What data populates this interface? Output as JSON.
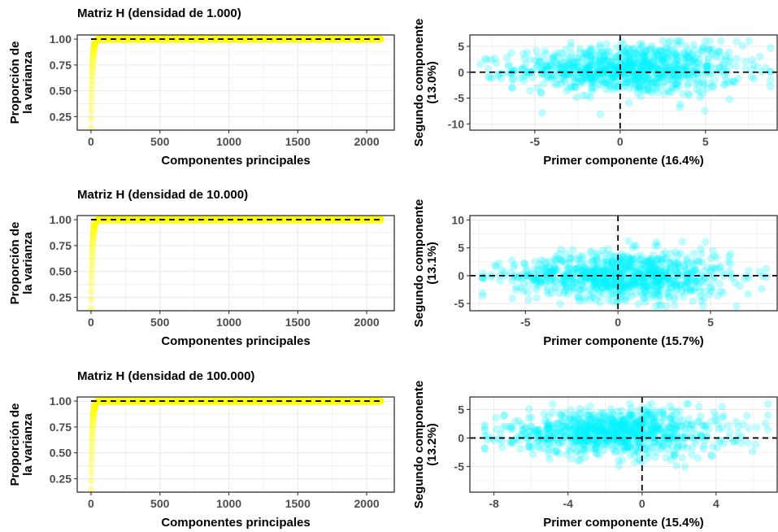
{
  "colors": {
    "variance_fill": "#ffff00",
    "pca_fill": "#00f5ff",
    "reference_line": "#000000",
    "grid": "#ebebeb",
    "panel_border": "#333333",
    "tick_text": "#4d4d4d"
  },
  "chart_data": [
    {
      "type": "scatter",
      "title": "Matriz H (densidad de 1.000)",
      "xlabel": "Componentes principales",
      "ylabel_lines": [
        "Proporción de",
        "la varianza"
      ],
      "xlim": [
        -100,
        2200
      ],
      "ylim": [
        0.12,
        1.04
      ],
      "x_ticks": [
        0,
        500,
        1000,
        1500,
        2000
      ],
      "x_tick_labels": [
        "0",
        "500",
        "1000",
        "1500",
        "2000"
      ],
      "y_ticks": [
        0.25,
        0.5,
        0.75,
        1.0
      ],
      "y_tick_labels": [
        "0.25",
        "0.50",
        "0.75",
        "1.00"
      ],
      "reference_line_y": 1.0,
      "n_components": 2100,
      "first_component_proportion": 0.14,
      "grid": true
    },
    {
      "type": "scatter",
      "xlabel": "Primer componente (16.4%)",
      "ylabel_lines": [
        "Segundo componente",
        "(13.0%)"
      ],
      "xlim": [
        -8.8,
        9.2
      ],
      "ylim": [
        -11.2,
        7.2
      ],
      "x_ticks": [
        -5,
        0,
        5
      ],
      "x_tick_labels": [
        "-5",
        "0",
        "5"
      ],
      "y_ticks": [
        -10,
        -5,
        0,
        5
      ],
      "y_tick_labels": [
        "-10",
        "-5",
        "0",
        "5"
      ],
      "reference_lines": {
        "x": 0,
        "y": 0
      },
      "cloud": {
        "x_range": [
          -8.2,
          8.8
        ],
        "y_range": [
          -10.5,
          6.0
        ],
        "x_center": 0.5,
        "y_center": 0.6,
        "n_points": 900
      },
      "grid": true
    },
    {
      "type": "scatter",
      "title": "Matriz H (densidad de 10.000)",
      "xlabel": "Componentes principales",
      "ylabel_lines": [
        "Proporción de",
        "la varianza"
      ],
      "xlim": [
        -100,
        2200
      ],
      "ylim": [
        0.12,
        1.04
      ],
      "x_ticks": [
        0,
        500,
        1000,
        1500,
        2000
      ],
      "x_tick_labels": [
        "0",
        "500",
        "1000",
        "1500",
        "2000"
      ],
      "y_ticks": [
        0.25,
        0.5,
        0.75,
        1.0
      ],
      "y_tick_labels": [
        "0.25",
        "0.50",
        "0.75",
        "1.00"
      ],
      "reference_line_y": 1.0,
      "n_components": 2100,
      "first_component_proportion": 0.14,
      "grid": true
    },
    {
      "type": "scatter",
      "xlabel": "Primer componente (15.7%)",
      "ylabel_lines": [
        "Segundo componente",
        "(13.1%)"
      ],
      "xlim": [
        -8.0,
        8.6
      ],
      "ylim": [
        -6.3,
        10.8
      ],
      "x_ticks": [
        -5,
        0,
        5
      ],
      "x_tick_labels": [
        "-5",
        "0",
        "5"
      ],
      "y_ticks": [
        -5,
        0,
        5,
        10
      ],
      "y_tick_labels": [
        "-5",
        "0",
        "5",
        "10"
      ],
      "reference_lines": {
        "x": 0,
        "y": 0
      },
      "cloud": {
        "x_range": [
          -7.3,
          8.0
        ],
        "y_range": [
          -5.5,
          9.5
        ],
        "x_center": 0.3,
        "y_center": 0.0,
        "n_points": 900
      },
      "grid": true
    },
    {
      "type": "scatter",
      "title": "Matriz H (densidad de 100.000)",
      "xlabel": "Componentes principales",
      "ylabel_lines": [
        "Proporción de",
        "la varianza"
      ],
      "xlim": [
        -100,
        2200
      ],
      "ylim": [
        0.12,
        1.04
      ],
      "x_ticks": [
        0,
        500,
        1000,
        1500,
        2000
      ],
      "x_tick_labels": [
        "0",
        "500",
        "1000",
        "1500",
        "2000"
      ],
      "y_ticks": [
        0.25,
        0.5,
        0.75,
        1.0
      ],
      "y_tick_labels": [
        "0.25",
        "0.50",
        "0.75",
        "1.00"
      ],
      "reference_line_y": 1.0,
      "n_components": 2100,
      "first_component_proportion": 0.14,
      "grid": true
    },
    {
      "type": "scatter",
      "xlabel": "Primer componente (15.4%)",
      "ylabel_lines": [
        "Segundo componente",
        "(13.2%)"
      ],
      "xlim": [
        -9.3,
        7.3
      ],
      "ylim": [
        -9.5,
        7.2
      ],
      "x_ticks": [
        -8,
        -4,
        0,
        4
      ],
      "x_tick_labels": [
        "-8",
        "-4",
        "0",
        "4"
      ],
      "y_ticks": [
        -5,
        0,
        5
      ],
      "y_tick_labels": [
        "-5",
        "0",
        "5"
      ],
      "reference_lines": {
        "x": 0,
        "y": 0
      },
      "cloud": {
        "x_range": [
          -8.5,
          6.8
        ],
        "y_range": [
          -8.5,
          6.0
        ],
        "x_center": -1.5,
        "y_center": 1.0,
        "n_points": 900
      },
      "grid": true
    }
  ]
}
